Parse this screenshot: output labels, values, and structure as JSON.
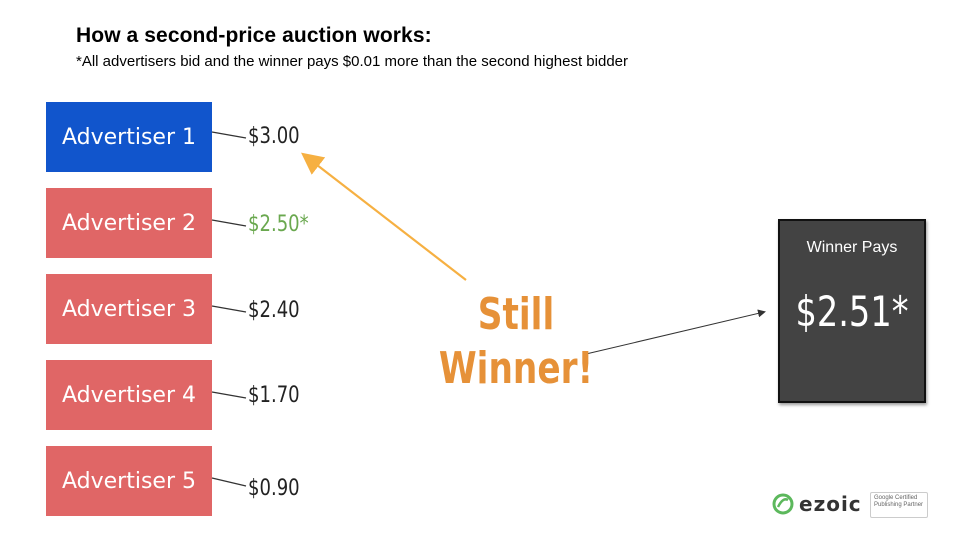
{
  "header": {
    "title": "How a second-price auction works:",
    "subtitle": "*All advertisers bid and the winner pays $0.01 more than the second highest bidder"
  },
  "advertisers": [
    {
      "label": "Advertiser 1",
      "bid": "$3.00",
      "status": "winner"
    },
    {
      "label": "Advertiser 2",
      "bid": "$2.50*",
      "status": "second-highest"
    },
    {
      "label": "Advertiser 3",
      "bid": "$2.40",
      "status": "bidder"
    },
    {
      "label": "Advertiser 4",
      "bid": "$1.70",
      "status": "bidder"
    },
    {
      "label": "Advertiser 5",
      "bid": "$0.90",
      "status": "bidder"
    }
  ],
  "callout": {
    "line1": "Still",
    "line2": "Winner!"
  },
  "result": {
    "label": "Winner Pays",
    "amount": "$2.51*"
  },
  "branding": {
    "logo_text": "ezoic",
    "badge_text": "Google Certified Publishing Partner"
  },
  "colors": {
    "winner_box": "#1155cc",
    "bidder_box": "#e06666",
    "second_bid_text": "#6aa84f",
    "callout": "#e69138",
    "result_box": "#434343",
    "logo_green": "#5cb85c"
  }
}
